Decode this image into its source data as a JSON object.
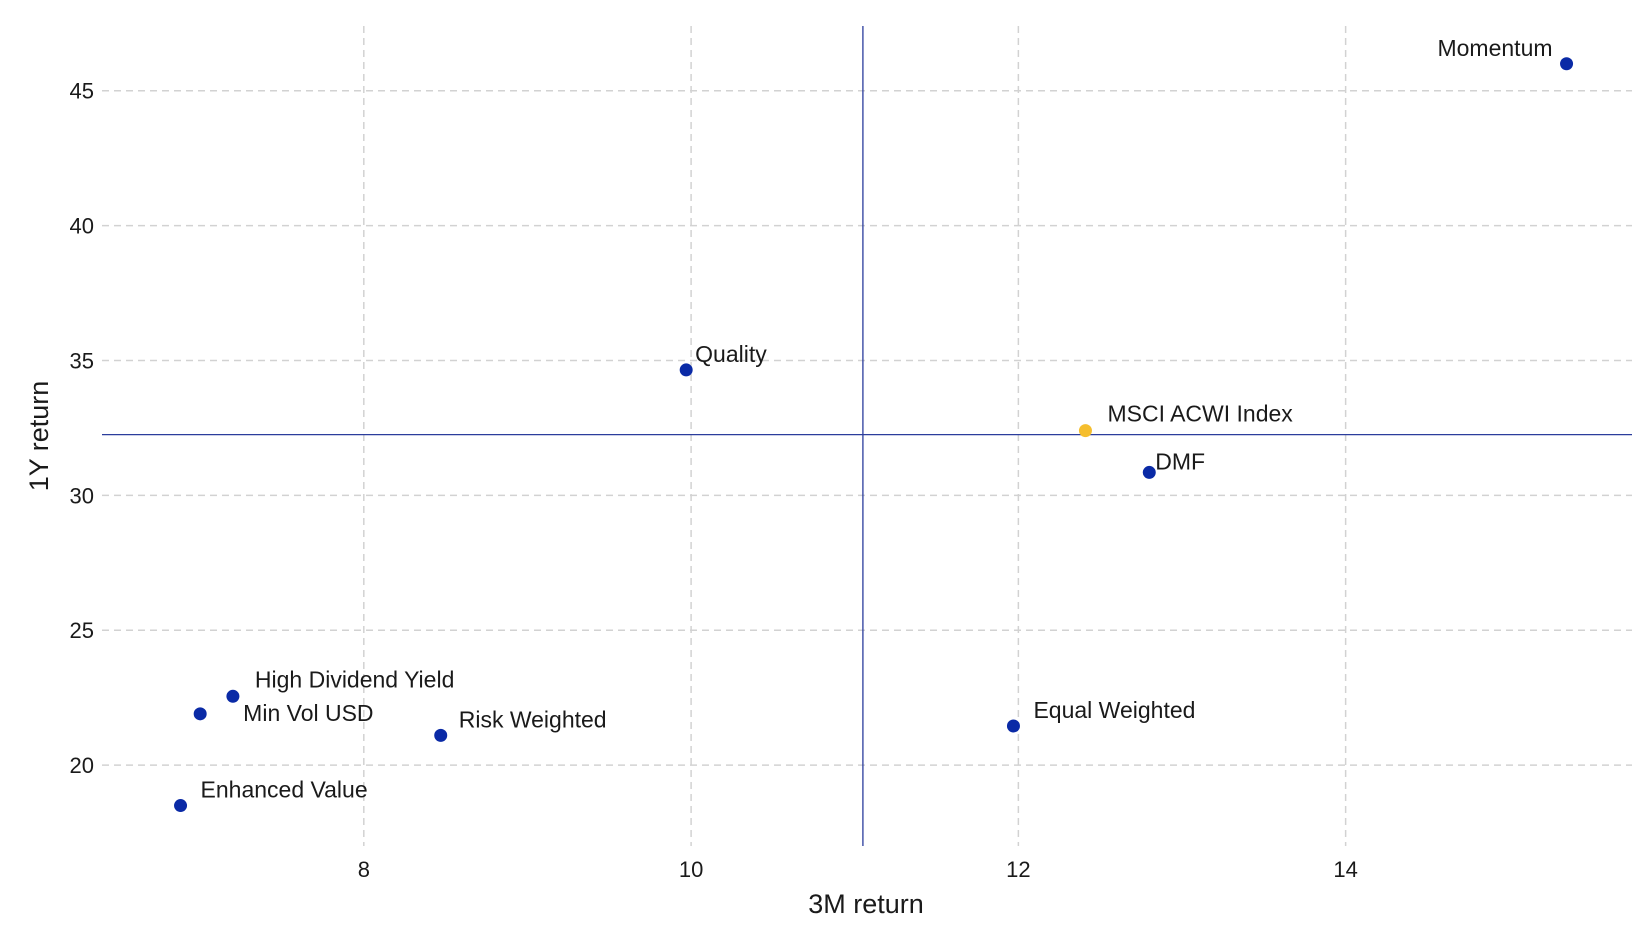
{
  "chart_data": {
    "type": "scatter",
    "title": "",
    "xlabel": "3M return",
    "ylabel": "1Y return",
    "xlim": [
      6.4,
      15.75
    ],
    "ylim": [
      17.0,
      47.4
    ],
    "x_ticks": [
      8,
      10,
      12,
      14
    ],
    "y_ticks": [
      20,
      25,
      30,
      35,
      40,
      45
    ],
    "grid": true,
    "legend": "none",
    "reference_lines": {
      "x": 11.05,
      "y": 32.25
    },
    "colors": {
      "point": "#0a2aa6",
      "highlight": "#f5be2e",
      "reference": "#2b3d9c",
      "grid": "#d2d2d2"
    },
    "points": [
      {
        "label": "Momentum",
        "x": 15.35,
        "y": 46.0,
        "highlight": false,
        "anchor": "end",
        "dx": -14,
        "dy": -8
      },
      {
        "label": "Quality",
        "x": 9.97,
        "y": 34.65,
        "highlight": false,
        "anchor": "start",
        "dx": 9,
        "dy": -8
      },
      {
        "label": "MSCI ACWI Index",
        "x": 12.41,
        "y": 32.4,
        "highlight": false,
        "anchor": "start",
        "dx": 22,
        "dy": -9,
        "is_highlight": true
      },
      {
        "label": "DMF",
        "x": 12.8,
        "y": 30.85,
        "highlight": false,
        "anchor": "start",
        "dx": 6,
        "dy": -3
      },
      {
        "label": "High Dividend Yield",
        "x": 7.2,
        "y": 22.55,
        "highlight": false,
        "anchor": "start",
        "dx": 22,
        "dy": -9
      },
      {
        "label": "Min Vol USD",
        "x": 7.0,
        "y": 21.9,
        "highlight": false,
        "anchor": "start",
        "dx": 43,
        "dy": 7
      },
      {
        "label": "Risk Weighted",
        "x": 8.47,
        "y": 21.1,
        "highlight": false,
        "anchor": "start",
        "dx": 18,
        "dy": -8
      },
      {
        "label": "Equal Weighted",
        "x": 11.97,
        "y": 21.45,
        "highlight": false,
        "anchor": "start",
        "dx": 20,
        "dy": -8
      },
      {
        "label": "Enhanced Value",
        "x": 6.88,
        "y": 18.5,
        "highlight": false,
        "anchor": "start",
        "dx": 20,
        "dy": -8
      }
    ]
  }
}
